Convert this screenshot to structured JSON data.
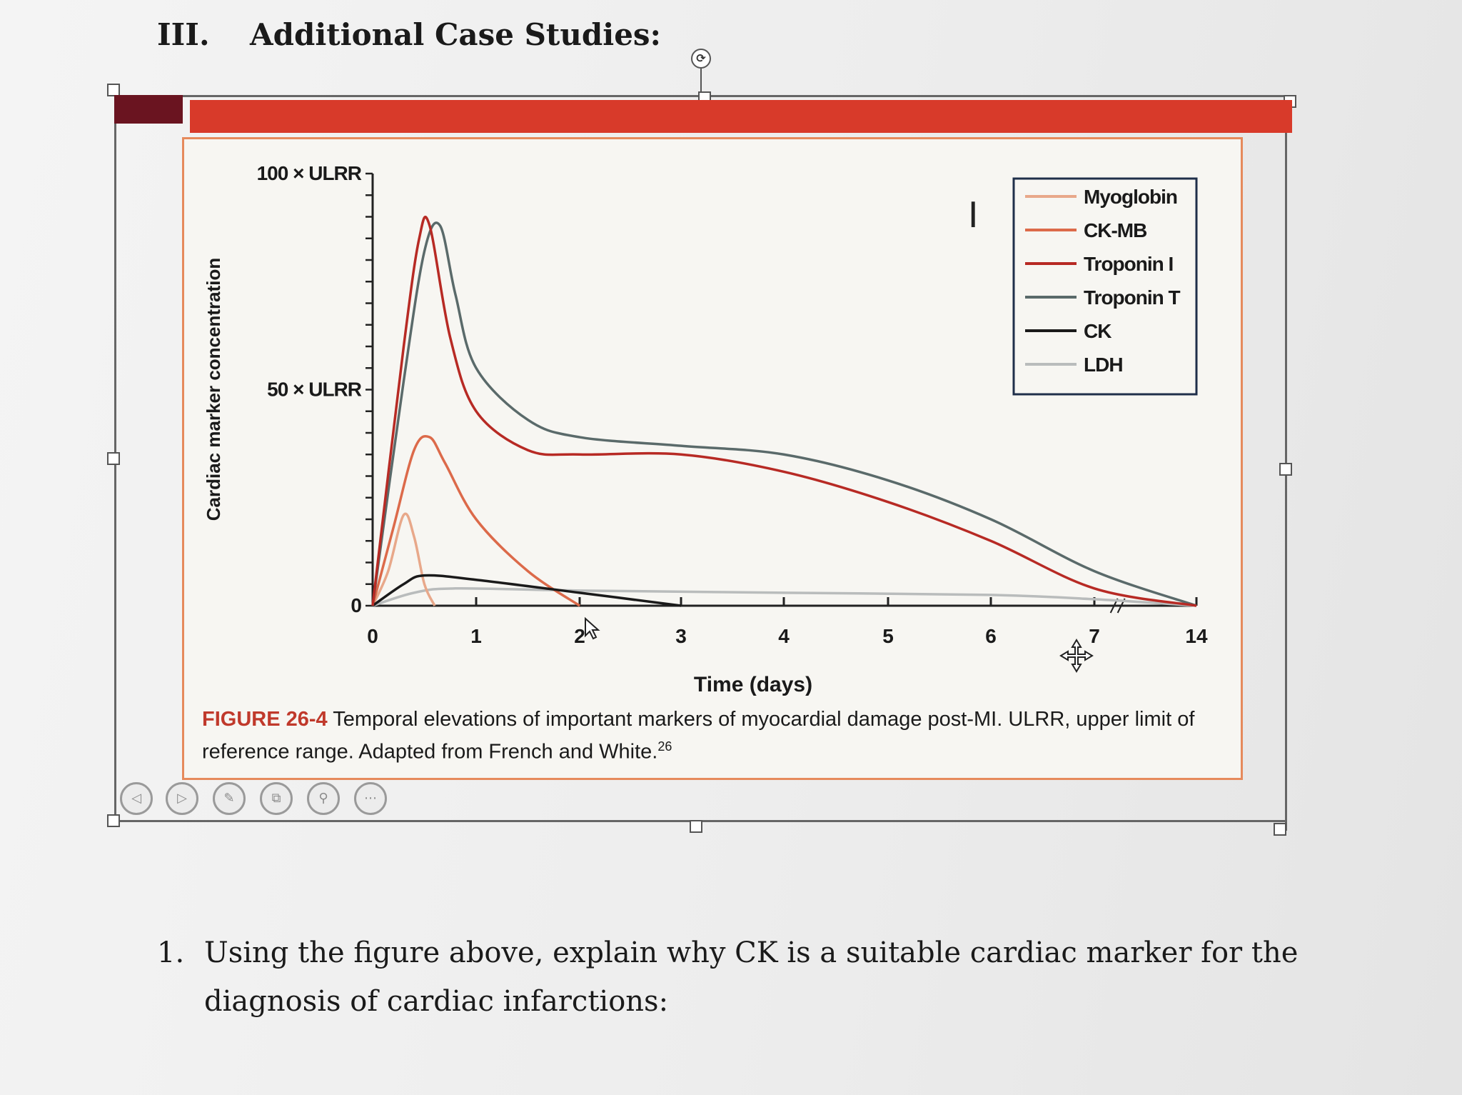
{
  "heading": {
    "number": "III.",
    "title": "Additional Case Studies:"
  },
  "figure": {
    "caption_label": "FIGURE 26-4",
    "caption_text": " Temporal elevations of important markers of myocardial damage post-MI. ULRR, upper limit of reference range. Adapted from French and White.",
    "caption_ref": "26"
  },
  "chart_data": {
    "type": "line",
    "title": "",
    "xlabel": "Time (days)",
    "ylabel": "Cardiac marker concentration",
    "x_ticks": [
      "0",
      "1",
      "2",
      "3",
      "4",
      "5",
      "6",
      "7",
      "14"
    ],
    "y_ticks": [
      "0",
      "50 × ULRR",
      "100 × ULRR"
    ],
    "ylim": [
      0,
      100
    ],
    "y_unit": "× ULRR",
    "x_note": "axis break between 7 and 14 days",
    "legend_position": "top-right",
    "series": [
      {
        "name": "Myoglobin",
        "color": "#e8a88a",
        "x": [
          0,
          0.15,
          0.3,
          0.4,
          0.5,
          0.6
        ],
        "y": [
          0,
          8,
          21,
          16,
          5,
          0
        ]
      },
      {
        "name": "CK-MB",
        "color": "#dc6a4a",
        "x": [
          0,
          0.2,
          0.4,
          0.55,
          0.7,
          1.0,
          1.5,
          2.0
        ],
        "y": [
          0,
          18,
          36,
          39,
          33,
          20,
          8,
          0
        ]
      },
      {
        "name": "Troponin I",
        "color": "#b72a24",
        "x": [
          0,
          0.3,
          0.45,
          0.55,
          0.75,
          1.0,
          1.5,
          2.0,
          3.0,
          4.0,
          5.0,
          6.0,
          7.0,
          14
        ],
        "y": [
          0,
          60,
          85,
          88,
          62,
          45,
          36,
          35,
          35,
          31,
          24,
          15,
          4,
          0
        ]
      },
      {
        "name": "Troponin T",
        "color": "#5a6a6a",
        "x": [
          0,
          0.3,
          0.5,
          0.65,
          0.8,
          1.0,
          1.5,
          2.0,
          3.0,
          4.0,
          5.0,
          6.0,
          7.0,
          14
        ],
        "y": [
          0,
          52,
          82,
          88,
          72,
          55,
          43,
          39,
          37,
          35,
          29,
          20,
          8,
          0
        ]
      },
      {
        "name": "CK",
        "color": "#1a1a1a",
        "x": [
          0,
          0.3,
          0.5,
          1.0,
          2.0,
          3.0
        ],
        "y": [
          0,
          5,
          7,
          6,
          3,
          0
        ]
      },
      {
        "name": "LDH",
        "color": "#b9bcbc",
        "x": [
          0,
          0.4,
          0.8,
          2.0,
          4.0,
          6.0,
          7.0,
          14
        ],
        "y": [
          0,
          3,
          4,
          3.5,
          3,
          2.5,
          1.5,
          0
        ]
      }
    ]
  }
}
